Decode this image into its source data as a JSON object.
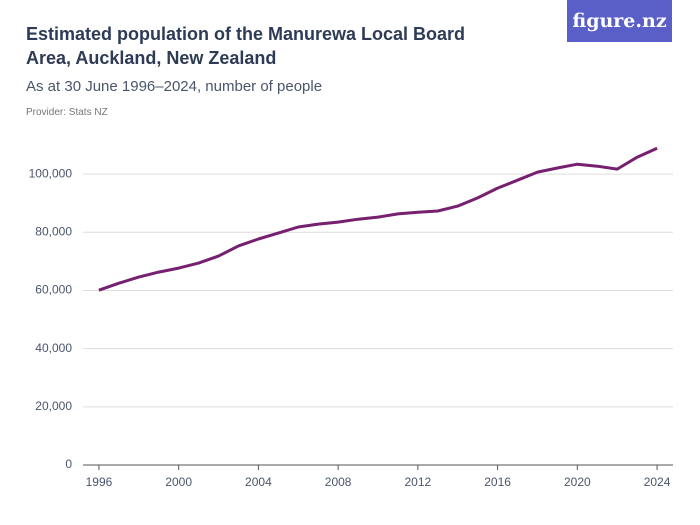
{
  "brand": "figure.nz",
  "chart_data": {
    "type": "line",
    "title": "Estimated population of the Manurewa Local Board Area, Auckland, New Zealand",
    "subtitle": "As at 30 June 1996–2024, number of people",
    "provider": "Provider: Stats NZ",
    "x": [
      1996,
      1997,
      1998,
      1999,
      2000,
      2001,
      2002,
      2003,
      2004,
      2005,
      2006,
      2007,
      2008,
      2009,
      2010,
      2011,
      2012,
      2013,
      2014,
      2015,
      2016,
      2017,
      2018,
      2019,
      2020,
      2021,
      2022,
      2023,
      2024
    ],
    "series": [
      {
        "name": "Manurewa Local Board Area",
        "color": "#76206f",
        "values": [
          60100,
          62500,
          64600,
          66300,
          67700,
          69400,
          71800,
          75300,
          77700,
          79700,
          81800,
          82800,
          83500,
          84500,
          85200,
          86300,
          86900,
          87300,
          89000,
          91800,
          95200,
          97900,
          100700,
          102100,
          103400,
          102700,
          101700,
          105800,
          108900
        ]
      }
    ],
    "xlim": [
      1995.2,
      2024.8
    ],
    "xticks": [
      1996,
      2000,
      2004,
      2008,
      2012,
      2016,
      2020,
      2024
    ],
    "ylim": [
      0,
      110000
    ],
    "yticks": [
      0,
      {
        "value": 20000,
        "label": "20,000"
      },
      {
        "value": 40000,
        "label": "40,000"
      },
      {
        "value": 60000,
        "label": "60,000"
      },
      {
        "value": 80000,
        "label": "80,000"
      },
      {
        "value": 100000,
        "label": "100,000"
      }
    ],
    "grid": true
  }
}
